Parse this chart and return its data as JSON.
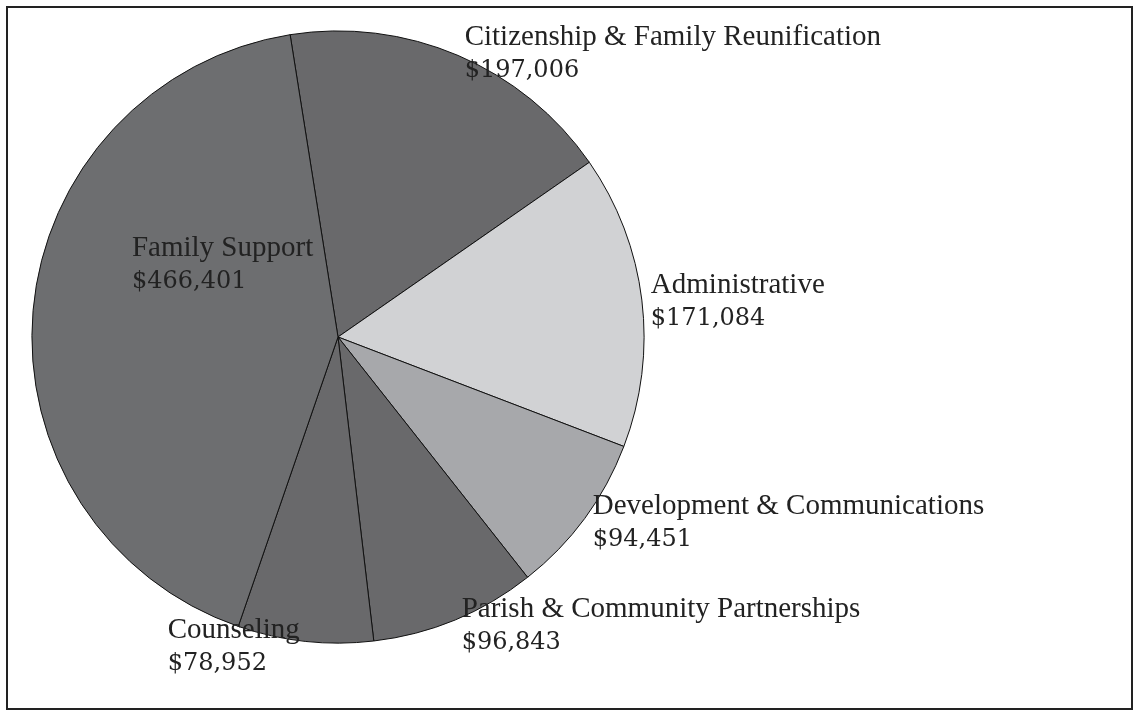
{
  "chart_data": {
    "type": "pie",
    "categories": [
      "Citizenship & Family Reunification",
      "Administrative",
      "Development & Communications",
      "Parish & Community Partnerships",
      "Counseling",
      "Family Support"
    ],
    "values": [
      197006,
      171084,
      94451,
      96843,
      78952,
      466401
    ],
    "value_labels": [
      "$197,006",
      "$171,084",
      "$94,451",
      "$96,843",
      "$78,952",
      "$466,401"
    ],
    "colors": [
      "#69696b",
      "#d1d2d4",
      "#a7a8ab",
      "#69696b",
      "#69696b",
      "#6d6e70"
    ],
    "legend": false
  }
}
